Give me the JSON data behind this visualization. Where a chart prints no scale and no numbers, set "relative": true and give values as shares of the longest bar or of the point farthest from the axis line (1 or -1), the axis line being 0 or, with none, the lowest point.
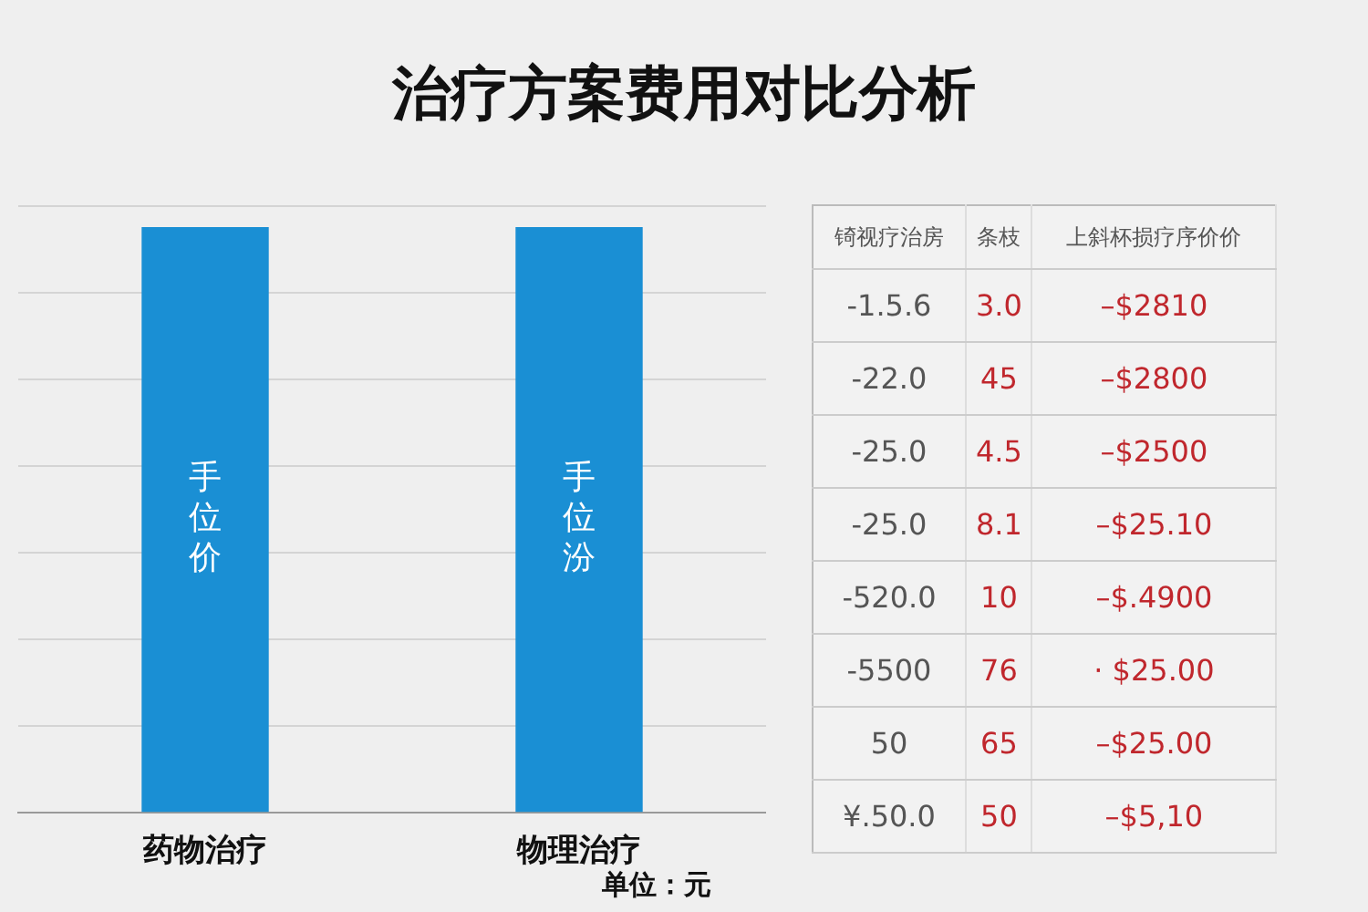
{
  "chart_data": [
    {
      "type": "bar",
      "title": "治疗方案费用对比分析",
      "categories": [
        "药物治疗",
        "物理治疗"
      ],
      "values": [
        1,
        1
      ],
      "color": "#1a8fd4",
      "relative": true,
      "grid": "y",
      "legend": false,
      "annotations": [
        "手位价",
        "手位汾",
        "单位：元"
      ]
    },
    {
      "type": "other",
      "categories": [
        "锜视疗治房",
        "条枝",
        "上斜杯损疗序价价"
      ],
      "cell_labels": [
        [
          "-1.5.6",
          "3.0",
          "–$2810"
        ],
        [
          "-22.0",
          "45",
          "–$2800"
        ],
        [
          "-25.0",
          "4.5",
          "–$2500"
        ],
        [
          "-25.0",
          "8.1",
          "–$25.10"
        ],
        [
          "-520.0",
          "10",
          "–$.4900"
        ],
        [
          "-5500",
          "76",
          "· $25.00"
        ],
        [
          "50",
          "65",
          "–$25.00"
        ],
        [
          "¥.50.0",
          "50",
          "–$5,10"
        ]
      ]
    }
  ]
}
